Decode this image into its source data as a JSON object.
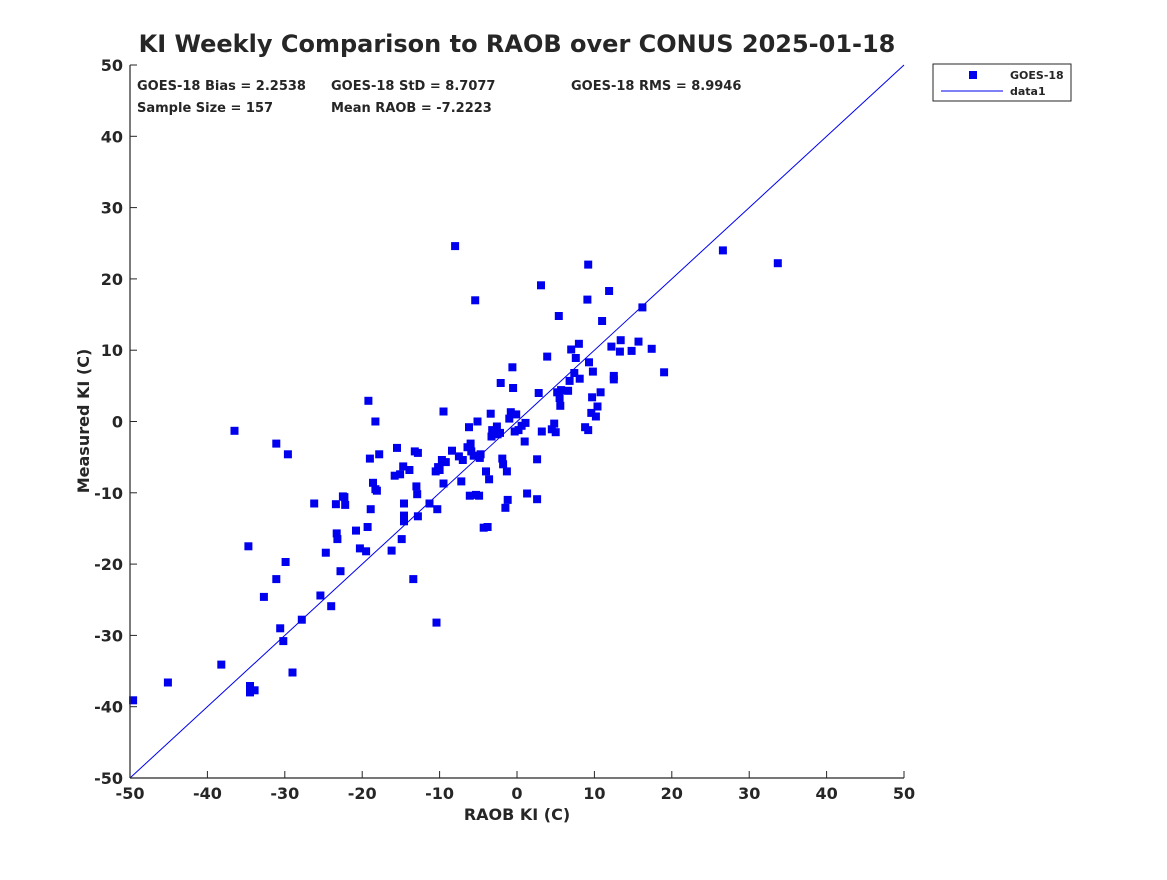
{
  "chart_data": {
    "type": "scatter",
    "title": "KI Weekly Comparison to RAOB over CONUS 2025-01-18",
    "xlabel": "RAOB KI (C)",
    "ylabel": "Measured KI (C)",
    "xlim": [
      -50,
      50
    ],
    "ylim": [
      -50,
      50
    ],
    "xticks": [
      -50,
      -40,
      -30,
      -20,
      -10,
      0,
      10,
      20,
      30,
      40,
      50
    ],
    "yticks": [
      -50,
      -40,
      -30,
      -20,
      -10,
      0,
      10,
      20,
      30,
      40,
      50
    ],
    "grid": false,
    "legend_position": "outside-top-right",
    "legend": [
      {
        "label": "GOES-18",
        "kind": "marker"
      },
      {
        "label": "data1",
        "kind": "line"
      }
    ],
    "stats": {
      "bias": "GOES-18 Bias = 2.2538",
      "std": "GOES-18 StD = 8.7077",
      "rms": "GOES-18 RMS = 8.9946",
      "sample_size": "Sample Size = 157",
      "mean_raob": "Mean RAOB = -7.2223"
    },
    "colors": {
      "marker": "#0000ee",
      "line": "#0000ee",
      "axis": "#262626"
    },
    "reference_line": {
      "name": "data1",
      "x": [
        -50,
        50
      ],
      "y": [
        -50,
        50
      ]
    },
    "series": [
      {
        "name": "GOES-18",
        "points": [
          [
            -49.6,
            -39.1
          ],
          [
            -45.1,
            -36.6
          ],
          [
            -38.2,
            -34.1
          ],
          [
            -36.5,
            -1.3
          ],
          [
            -34.7,
            -17.5
          ],
          [
            -34.5,
            -37.1
          ],
          [
            -34.5,
            -38.0
          ],
          [
            -33.9,
            -37.7
          ],
          [
            -32.7,
            -24.6
          ],
          [
            -31.1,
            -22.1
          ],
          [
            -31.1,
            -3.1
          ],
          [
            -30.6,
            -29.0
          ],
          [
            -30.2,
            -30.8
          ],
          [
            -29.9,
            -19.7
          ],
          [
            -29.6,
            -4.6
          ],
          [
            -29.0,
            -35.2
          ],
          [
            -27.8,
            -27.8
          ],
          [
            -26.2,
            -11.5
          ],
          [
            -25.4,
            -24.4
          ],
          [
            -24.7,
            -18.4
          ],
          [
            -24.0,
            -25.9
          ],
          [
            -23.4,
            -11.6
          ],
          [
            -23.3,
            -15.7
          ],
          [
            -23.2,
            -16.5
          ],
          [
            -22.8,
            -21.0
          ],
          [
            -22.3,
            -10.6
          ],
          [
            -22.2,
            -11.7
          ],
          [
            -20.8,
            -15.3
          ],
          [
            -20.3,
            -17.8
          ],
          [
            -19.5,
            -18.2
          ],
          [
            -19.3,
            -14.8
          ],
          [
            -19.2,
            2.9
          ],
          [
            -19.0,
            -5.2
          ],
          [
            -18.9,
            -12.3
          ],
          [
            -18.6,
            -8.6
          ],
          [
            -18.3,
            0.0
          ],
          [
            -18.3,
            -9.5
          ],
          [
            -18.1,
            -9.7
          ],
          [
            -17.8,
            -4.6
          ],
          [
            -16.2,
            -18.1
          ],
          [
            -15.8,
            -7.6
          ],
          [
            -15.5,
            -3.7
          ],
          [
            -15.1,
            -7.4
          ],
          [
            -14.9,
            -16.5
          ],
          [
            -14.7,
            -6.3
          ],
          [
            -14.6,
            -11.5
          ],
          [
            -14.6,
            -13.2
          ],
          [
            -14.6,
            -14.0
          ],
          [
            -13.9,
            -6.8
          ],
          [
            -13.4,
            -22.1
          ],
          [
            -13.2,
            -4.2
          ],
          [
            -13.0,
            -9.1
          ],
          [
            -12.9,
            -10.2
          ],
          [
            -12.8,
            -13.3
          ],
          [
            -12.8,
            -4.4
          ],
          [
            -11.3,
            -11.5
          ],
          [
            -10.5,
            -7.0
          ],
          [
            -10.4,
            -28.2
          ],
          [
            -10.3,
            -12.3
          ],
          [
            -10.2,
            -6.4
          ],
          [
            -10.0,
            -6.8
          ],
          [
            -9.7,
            -5.4
          ],
          [
            -9.5,
            1.4
          ],
          [
            -9.5,
            -8.7
          ],
          [
            -9.2,
            -5.7
          ],
          [
            -8.4,
            -4.1
          ],
          [
            -8.0,
            24.6
          ],
          [
            -7.5,
            -4.9
          ],
          [
            -7.2,
            -8.4
          ],
          [
            -7.0,
            -5.4
          ],
          [
            -6.4,
            -3.6
          ],
          [
            -6.2,
            -0.8
          ],
          [
            -6.1,
            -10.4
          ],
          [
            -6.0,
            -3.1
          ],
          [
            -5.9,
            -4.2
          ],
          [
            -5.6,
            -4.8
          ],
          [
            -5.4,
            17.0
          ],
          [
            -5.3,
            -10.3
          ],
          [
            -5.1,
            0.0
          ],
          [
            -4.9,
            -10.4
          ],
          [
            -4.8,
            -5.1
          ],
          [
            -4.7,
            -4.6
          ],
          [
            -4.3,
            -14.9
          ],
          [
            -4.0,
            -7.0
          ],
          [
            -3.8,
            -14.8
          ],
          [
            -3.6,
            -8.1
          ],
          [
            -3.4,
            1.1
          ],
          [
            -3.3,
            -2.1
          ],
          [
            -3.2,
            -1.2
          ],
          [
            -3.0,
            -1.5
          ],
          [
            -2.6,
            -0.7
          ],
          [
            -2.5,
            -1.8
          ],
          [
            -2.2,
            -1.6
          ],
          [
            -2.1,
            5.4
          ],
          [
            -1.9,
            -5.2
          ],
          [
            -1.8,
            -6.0
          ],
          [
            -1.5,
            -12.1
          ],
          [
            -1.3,
            -7.0
          ],
          [
            -1.2,
            -11.0
          ],
          [
            -1.0,
            0.4
          ],
          [
            -0.8,
            1.3
          ],
          [
            -0.6,
            7.6
          ],
          [
            -0.5,
            4.7
          ],
          [
            -0.3,
            -1.4
          ],
          [
            -0.1,
            1.0
          ],
          [
            0.2,
            -1.2
          ],
          [
            0.6,
            -0.6
          ],
          [
            1.0,
            -2.8
          ],
          [
            1.1,
            -0.2
          ],
          [
            1.3,
            -10.1
          ],
          [
            2.6,
            -5.3
          ],
          [
            2.6,
            -10.9
          ],
          [
            2.8,
            4.0
          ],
          [
            3.1,
            19.1
          ],
          [
            3.2,
            -1.4
          ],
          [
            3.9,
            9.1
          ],
          [
            4.5,
            -1.1
          ],
          [
            4.8,
            -0.3
          ],
          [
            5.0,
            -1.5
          ],
          [
            5.2,
            4.1
          ],
          [
            5.4,
            14.8
          ],
          [
            5.5,
            3.3
          ],
          [
            5.6,
            2.2
          ],
          [
            5.7,
            4.4
          ],
          [
            6.6,
            4.3
          ],
          [
            6.8,
            5.7
          ],
          [
            7.0,
            10.1
          ],
          [
            7.4,
            6.8
          ],
          [
            7.6,
            8.9
          ],
          [
            8.0,
            10.9
          ],
          [
            8.1,
            6.0
          ],
          [
            8.8,
            -0.8
          ],
          [
            9.1,
            17.1
          ],
          [
            9.2,
            -1.2
          ],
          [
            9.2,
            22.0
          ],
          [
            9.3,
            8.3
          ],
          [
            9.6,
            1.2
          ],
          [
            9.7,
            3.4
          ],
          [
            9.8,
            7.0
          ],
          [
            10.2,
            0.7
          ],
          [
            10.4,
            2.1
          ],
          [
            10.8,
            4.1
          ],
          [
            11.0,
            14.1
          ],
          [
            11.9,
            18.3
          ],
          [
            12.2,
            10.5
          ],
          [
            12.5,
            5.9
          ],
          [
            12.5,
            6.4
          ],
          [
            13.3,
            9.8
          ],
          [
            13.4,
            11.4
          ],
          [
            14.8,
            9.9
          ],
          [
            15.7,
            11.2
          ],
          [
            16.2,
            16.0
          ],
          [
            17.4,
            10.2
          ],
          [
            19.0,
            6.9
          ],
          [
            26.6,
            24.0
          ],
          [
            33.7,
            22.2
          ],
          [
            -22.5,
            -10.5
          ]
        ]
      }
    ]
  }
}
